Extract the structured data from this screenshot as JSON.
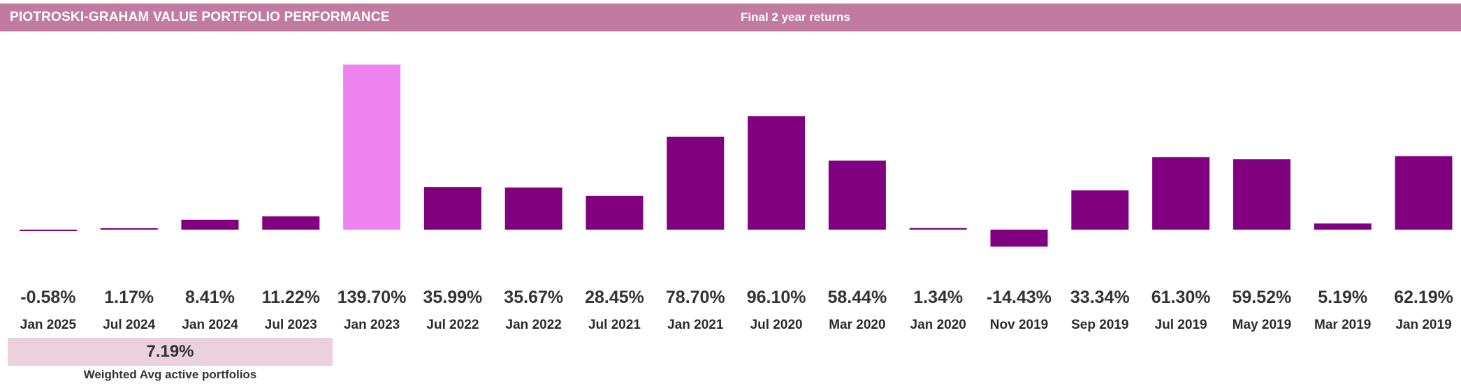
{
  "header": {
    "title": "PIOTROSKI-GRAHAM VALUE PORTFOLIO PERFORMANCE",
    "subtitle": "Final 2 year returns"
  },
  "summary": {
    "value": "7.19%",
    "label": "Weighted Avg active portfolios"
  },
  "colors": {
    "header_bg": "#c27ba0",
    "bar": "#800080",
    "bar_highlight": "#ee82ee",
    "summary_bg": "#ead1dc"
  },
  "chart_data": {
    "type": "bar",
    "title": "Final 2 year returns",
    "categories": [
      "Jan 2025",
      "Jul 2024",
      "Jan 2024",
      "Jul 2023",
      "Jan 2023",
      "Jul 2022",
      "Jan 2022",
      "Jul 2021",
      "Jan 2021",
      "Jul 2020",
      "Mar 2020",
      "Jan 2020",
      "Nov 2019",
      "Sep 2019",
      "Jul 2019",
      "May 2019",
      "Mar 2019",
      "Jan 2019"
    ],
    "values": [
      -0.58,
      1.17,
      8.41,
      11.22,
      139.7,
      35.99,
      35.67,
      28.45,
      78.7,
      96.1,
      58.44,
      1.34,
      -14.43,
      33.34,
      61.3,
      59.52,
      5.19,
      62.19
    ],
    "value_labels": [
      "-0.58%",
      "1.17%",
      "8.41%",
      "11.22%",
      "139.70%",
      "35.99%",
      "35.67%",
      "28.45%",
      "78.70%",
      "96.10%",
      "58.44%",
      "1.34%",
      "-14.43%",
      "33.34%",
      "61.30%",
      "59.52%",
      "5.19%",
      "62.19%"
    ],
    "highlight_index": 4,
    "ylim": [
      -15,
      140
    ],
    "grid": false,
    "legend": "none"
  }
}
